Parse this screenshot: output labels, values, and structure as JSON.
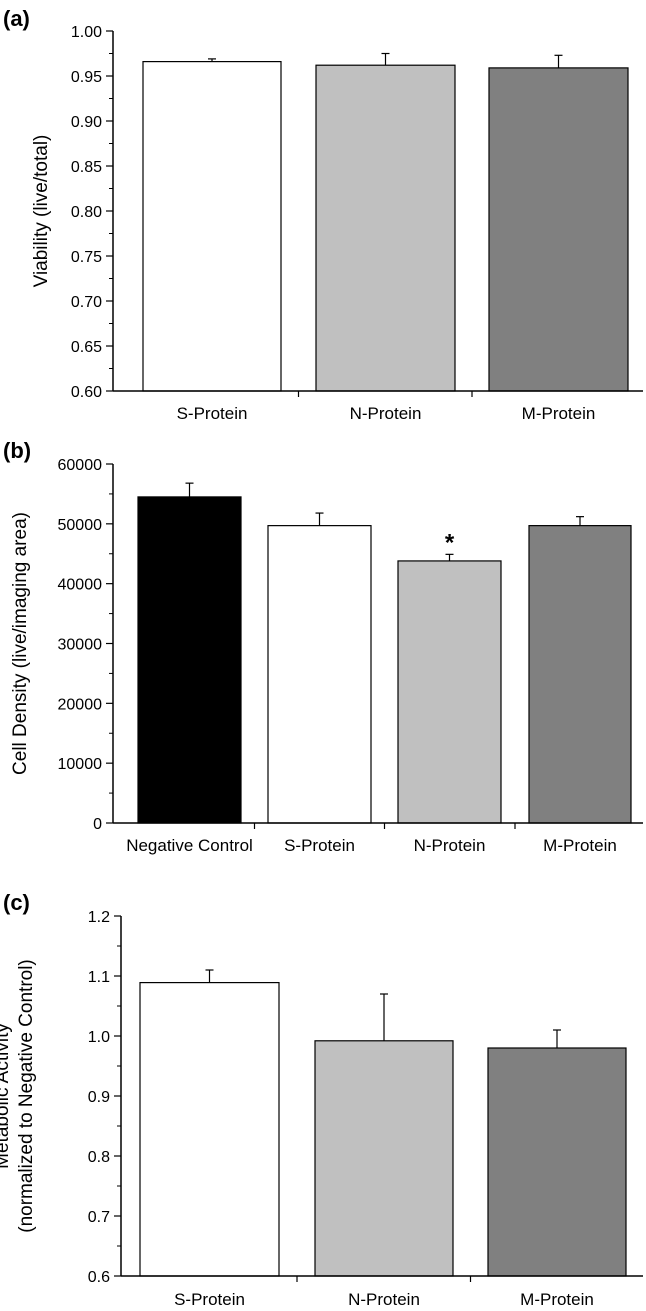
{
  "chart_data": [
    {
      "type": "bar",
      "panel_label": "(a)",
      "title": "",
      "xlabel": "",
      "ylabel": "Viability (live/total)",
      "ylabel_lines": [
        "Viability (live/total)"
      ],
      "ylim": [
        0.6,
        1.0
      ],
      "yticks": [
        0.6,
        0.65,
        0.7,
        0.75,
        0.8,
        0.85,
        0.9,
        0.95,
        1.0
      ],
      "ytick_labels": [
        "0.60",
        "0.65",
        "0.70",
        "0.75",
        "0.80",
        "0.85",
        "0.90",
        "0.95",
        "1.00"
      ],
      "categories": [
        "S-Protein",
        "N-Protein",
        "M-Protein"
      ],
      "values": [
        0.966,
        0.962,
        0.959
      ],
      "errors": [
        0.003,
        0.013,
        0.014
      ],
      "colors": [
        "#ffffff",
        "#c0c0c0",
        "#808080"
      ],
      "annotations": []
    },
    {
      "type": "bar",
      "panel_label": "(b)",
      "title": "",
      "xlabel": "",
      "ylabel": "Cell Density (live/imaging area)",
      "ylabel_lines": [
        "Cell Density (live/imaging area)"
      ],
      "ylim": [
        0,
        60000
      ],
      "yticks": [
        0,
        10000,
        20000,
        30000,
        40000,
        50000,
        60000
      ],
      "ytick_labels": [
        "0",
        "10000",
        "20000",
        "30000",
        "40000",
        "50000",
        "60000"
      ],
      "categories": [
        "Negative Control",
        "S-Protein",
        "N-Protein",
        "M-Protein"
      ],
      "values": [
        54500,
        49700,
        43800,
        49700
      ],
      "errors": [
        2300,
        2100,
        1100,
        1500
      ],
      "colors": [
        "#000000",
        "#ffffff",
        "#c0c0c0",
        "#808080"
      ],
      "annotations": [
        {
          "text": "*",
          "category": "N-Protein"
        }
      ]
    },
    {
      "type": "bar",
      "panel_label": "(c)",
      "title": "",
      "xlabel": "",
      "ylabel": "Metabolic Activity (normalized to Negative Control)",
      "ylabel_lines": [
        "Metabolic Activity",
        "(normalized to Negative Control)"
      ],
      "ylim": [
        0.6,
        1.2
      ],
      "yticks": [
        0.6,
        0.7,
        0.8,
        0.9,
        1.0,
        1.1,
        1.2
      ],
      "ytick_labels": [
        "0.6",
        "0.7",
        "0.8",
        "0.9",
        "1.0",
        "1.1",
        "1.2"
      ],
      "categories": [
        "S-Protein",
        "N-Protein",
        "M-Protein"
      ],
      "values": [
        1.089,
        0.992,
        0.98
      ],
      "errors": [
        0.021,
        0.078,
        0.03
      ],
      "colors": [
        "#ffffff",
        "#c0c0c0",
        "#808080"
      ],
      "annotations": []
    }
  ]
}
